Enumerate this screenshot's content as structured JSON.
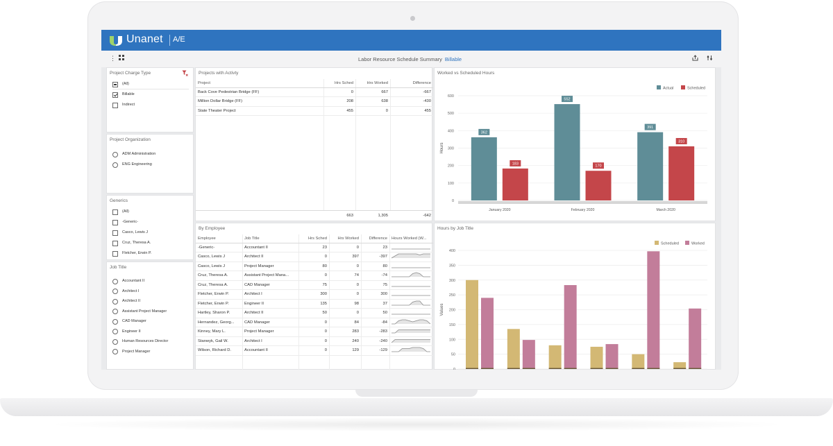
{
  "app": {
    "brand": "Unanet",
    "product": "A/E",
    "report_title": "Labor Resource Schedule Summary",
    "report_filter": "Billable",
    "accent": "#2f74bf"
  },
  "filters": {
    "charge_type": {
      "title": "Project Charge Type",
      "options": [
        {
          "label": "(All)",
          "state": "partial"
        },
        {
          "label": "Billable",
          "state": "checked"
        },
        {
          "label": "Indirect",
          "state": "unchecked"
        }
      ]
    },
    "organization": {
      "title": "Project Organization",
      "options": [
        "ADM Administration",
        "ENG Engineering"
      ]
    },
    "generics": {
      "title": "Generics",
      "options": [
        "(All)",
        "-Generic-",
        "Casco, Lewis J",
        "Cruz, Theresa A.",
        "Fletcher, Erwin P."
      ]
    },
    "job_title": {
      "title": "Job Title",
      "options": [
        "Accountant II",
        "Architect I",
        "Architect II",
        "Assistant Project Manager",
        "CAD Manager",
        "Engineer II",
        "Human Resources Director",
        "Project Manager"
      ]
    }
  },
  "projects": {
    "title": "Projects with Activty",
    "columns": [
      "Project",
      "Hrs Sched",
      "Hrs Worked",
      "Difference"
    ],
    "rows": [
      [
        "Back Cove Pedestrian Bridge (FF)",
        "0",
        "667",
        "-667"
      ],
      [
        "Million Dollar Bridge (FF)",
        "208",
        "638",
        "-430"
      ],
      [
        "State Theater Project",
        "455",
        "0",
        "455"
      ]
    ],
    "totals": [
      "663",
      "1,305",
      "-642"
    ]
  },
  "employees": {
    "title": "By Employee",
    "columns": [
      "Employee",
      "Job Title",
      "Hrs Sched",
      "Hrs Worked",
      "Difference",
      "Hours Worked (W..."
    ],
    "rows": [
      {
        "cells": [
          "-Generic-",
          "Accountant II",
          "23",
          "0",
          "23"
        ],
        "spark": [
          0,
          0,
          0,
          0,
          0,
          0,
          0,
          0,
          0,
          0,
          0,
          0
        ]
      },
      {
        "cells": [
          "Casco, Lewis J",
          "Architect II",
          "0",
          "397",
          "-397"
        ],
        "spark": [
          0,
          2,
          4,
          4,
          4,
          4,
          4,
          4,
          3,
          4,
          4,
          4
        ]
      },
      {
        "cells": [
          "Casco, Lewis J",
          "Project Manager",
          "80",
          "0",
          "80"
        ],
        "spark": [
          0,
          0,
          0,
          0,
          0,
          0,
          0,
          0,
          0,
          0,
          0,
          0
        ]
      },
      {
        "cells": [
          "Cruz, Theresa A.",
          "Assistant Project Mana...",
          "0",
          "74",
          "-74"
        ],
        "spark": [
          0,
          0,
          0,
          0,
          0,
          0,
          3,
          4,
          3,
          0,
          0,
          0
        ]
      },
      {
        "cells": [
          "Cruz, Theresa A.",
          "CAD Manager",
          "75",
          "0",
          "75"
        ],
        "spark": [
          0,
          0,
          0,
          0,
          0,
          0,
          0,
          0,
          0,
          0,
          0,
          0
        ]
      },
      {
        "cells": [
          "Fletcher, Erwin P.",
          "Architect I",
          "300",
          "0",
          "300"
        ],
        "spark": [
          0,
          0,
          0,
          0,
          0,
          0,
          0,
          0,
          0,
          0,
          0,
          0
        ]
      },
      {
        "cells": [
          "Fletcher, Erwin P.",
          "Engineer II",
          "135",
          "98",
          "37"
        ],
        "spark": [
          0,
          0,
          0,
          0,
          0,
          0,
          3,
          4,
          4,
          0,
          0,
          0
        ]
      },
      {
        "cells": [
          "Hartley, Sharon P.",
          "Architect II",
          "50",
          "0",
          "50"
        ],
        "spark": [
          0,
          0,
          0,
          0,
          0,
          0,
          0,
          0,
          0,
          0,
          0,
          0
        ]
      },
      {
        "cells": [
          "Hernandez, Georg...",
          "CAD Manager",
          "0",
          "84",
          "-84"
        ],
        "spark": [
          0,
          0,
          3,
          4,
          4,
          3,
          2,
          3,
          4,
          4,
          3,
          0
        ]
      },
      {
        "cells": [
          "Kinney, Mary L.",
          "Project Manager",
          "0",
          "283",
          "-283"
        ],
        "spark": [
          0,
          0,
          3,
          3,
          3,
          3,
          3,
          3,
          3,
          3,
          3,
          3
        ]
      },
      {
        "cells": [
          "Stanwyk, Gail W.",
          "Architect I",
          "0",
          "240",
          "-240"
        ],
        "spark": [
          0,
          3,
          3,
          3,
          3,
          3,
          3,
          3,
          3,
          3,
          3,
          3
        ]
      },
      {
        "cells": [
          "Wilson, Richard D.",
          "Accountant II",
          "0",
          "129",
          "-129"
        ],
        "spark": [
          0,
          0,
          0,
          3,
          3,
          3,
          4,
          4,
          4,
          3,
          0,
          0
        ]
      }
    ]
  },
  "chart_data": [
    {
      "type": "bar",
      "title": "Worked vs Scheduled Hours",
      "categories": [
        "January 2020",
        "February 2020",
        "March 2020"
      ],
      "series": [
        {
          "name": "Actual",
          "values": [
            362,
            552,
            391
          ],
          "color": "#5f8d97"
        },
        {
          "name": "Scheduled",
          "values": [
            183,
            170,
            310
          ],
          "color": "#c4464a"
        }
      ],
      "ylabel": "Hours",
      "ylim": [
        0,
        600
      ],
      "yticks": [
        0,
        100,
        200,
        300,
        400,
        500,
        600
      ],
      "legend": "top-right",
      "grid": true
    },
    {
      "type": "bar",
      "title": "Hours by Job Title",
      "series": [
        {
          "name": "Scheduled",
          "values": [
            300,
            135,
            80,
            75,
            50,
            23
          ],
          "color": "#d3b874"
        },
        {
          "name": "Worked",
          "values": [
            240,
            98,
            283,
            84,
            397,
            204
          ],
          "color": "#c27d9a"
        }
      ],
      "ylabel": "Values",
      "ylim": [
        0,
        400
      ],
      "yticks": [
        0,
        50,
        100,
        150,
        200,
        250,
        300,
        350,
        400
      ],
      "legend": "top-right",
      "grid": true
    }
  ]
}
